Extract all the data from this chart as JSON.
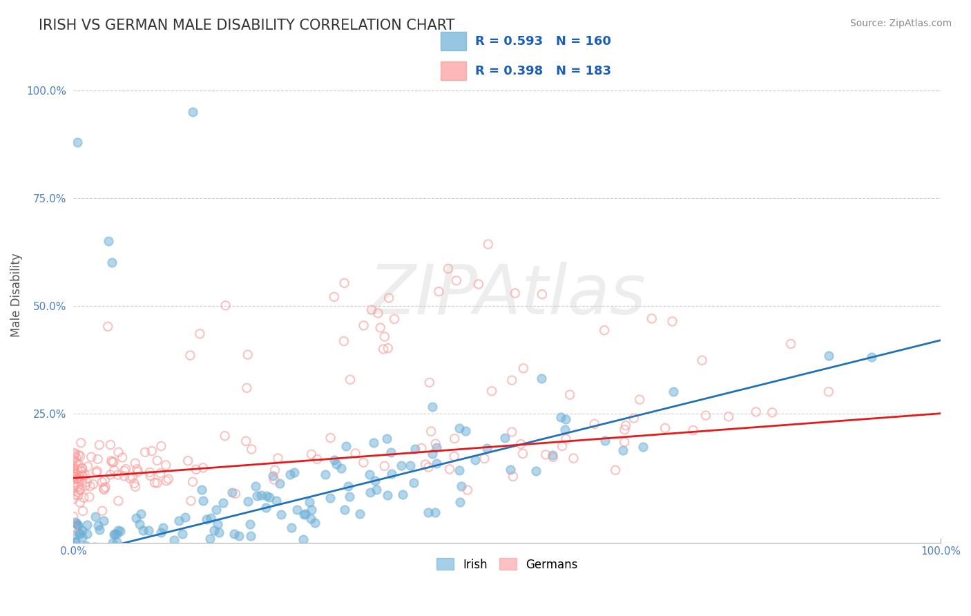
{
  "title": "IRISH VS GERMAN MALE DISABILITY CORRELATION CHART",
  "source_text": "Source: ZipAtlas.com",
  "ylabel": "Male Disability",
  "xlabel": "",
  "xlim": [
    0.0,
    1.0
  ],
  "ylim": [
    -0.05,
    1.1
  ],
  "x_tick_labels": [
    "0.0%",
    "100.0%"
  ],
  "y_tick_labels": [
    "25.0%",
    "50.0%",
    "75.0%",
    "100.0%"
  ],
  "y_tick_values": [
    0.25,
    0.5,
    0.75,
    1.0
  ],
  "irish_R": 0.593,
  "irish_N": 160,
  "german_R": 0.398,
  "german_N": 183,
  "irish_color": "#6baed6",
  "german_color": "#fb9a99",
  "irish_line_color": "#2171b5",
  "german_line_color": "#e31a1c",
  "irish_reg_intercept": -0.08,
  "irish_reg_slope": 0.5,
  "german_reg_intercept": 0.1,
  "german_reg_slope": 0.15,
  "watermark": "ZIPAtlas",
  "background_color": "#ffffff",
  "grid_color": "#cccccc",
  "title_color": "#333333",
  "legend_R_N_color": "#1a5fb4"
}
